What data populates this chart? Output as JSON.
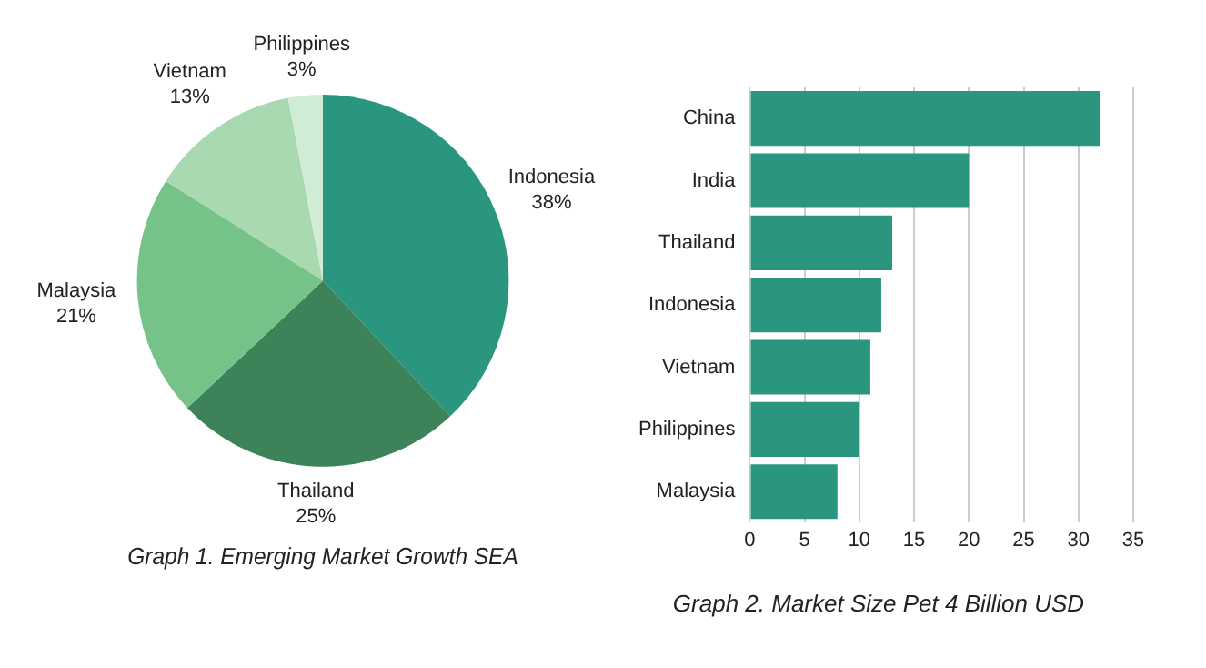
{
  "chart_data": [
    {
      "type": "pie",
      "title": "Graph 1. Emerging Market Growth SEA",
      "categories": [
        "Indonesia",
        "Thailand",
        "Malaysia",
        "Vietnam",
        "Philippines"
      ],
      "values": [
        38,
        25,
        21,
        13,
        3
      ],
      "colors": [
        "#2a9680",
        "#3d8259",
        "#76c38a",
        "#a8d9b0",
        "#d0ecd5"
      ],
      "value_labels": [
        "38%",
        "25%",
        "21%",
        "13%",
        "3%"
      ],
      "legend": false
    },
    {
      "type": "bar",
      "orientation": "horizontal",
      "title": "Graph 2. Market Size Pet 4 Billion USD",
      "categories": [
        "China",
        "India",
        "Thailand",
        "Indonesia",
        "Vietnam",
        "Philippines",
        "Malaysia"
      ],
      "values": [
        32,
        20,
        13,
        12,
        11,
        10,
        8
      ],
      "color": "#2a9680",
      "xlim": [
        0,
        35
      ],
      "xticks": [
        0,
        5,
        10,
        15,
        20,
        25,
        30,
        35
      ],
      "grid": "x",
      "legend": false
    }
  ]
}
